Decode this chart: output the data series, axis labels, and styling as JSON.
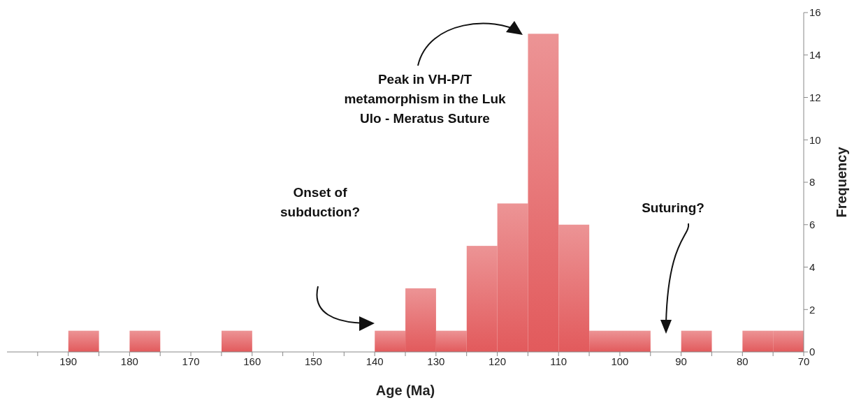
{
  "chart_data": {
    "type": "histogram",
    "xlabel": "Age (Ma)",
    "ylabel": "Frequency",
    "bins": [
      190,
      185,
      180,
      175,
      170,
      165,
      160,
      155,
      150,
      145,
      140,
      135,
      130,
      125,
      120,
      115,
      110,
      105,
      100,
      95,
      90,
      85,
      80,
      75,
      70
    ],
    "values": [
      1,
      0,
      1,
      0,
      0,
      1,
      0,
      0,
      0,
      0,
      1,
      3,
      1,
      5,
      7,
      15,
      6,
      1,
      1,
      0,
      1,
      0,
      1,
      1
    ],
    "color": "#e25a5c",
    "xlim": [
      200,
      70
    ],
    "xticks": [
      {
        "value": 195,
        "label": null
      },
      190,
      {
        "value": 185,
        "label": null
      },
      180,
      {
        "value": 175,
        "label": null
      },
      170,
      {
        "value": 165,
        "label": null
      },
      160,
      {
        "value": 155,
        "label": null
      },
      150,
      {
        "value": 145,
        "label": null
      },
      140,
      {
        "value": 135,
        "label": null
      },
      130,
      {
        "value": 125,
        "label": null
      },
      120,
      {
        "value": 115,
        "label": null
      },
      110,
      {
        "value": 105,
        "label": null
      },
      100,
      {
        "value": 95,
        "label": null
      },
      90,
      {
        "value": 85,
        "label": null
      },
      80,
      {
        "value": 75,
        "label": null
      },
      70
    ],
    "ylim": [
      0,
      16
    ],
    "yticks": [
      0,
      2,
      4,
      6,
      8,
      10,
      12,
      14,
      16
    ],
    "grid": false,
    "legend": false,
    "annotations": [
      "Peak in VH-P/T metamorphism in the Luk Ulo - Meratus Suture",
      "Onset of subduction?",
      "Suturing?"
    ]
  }
}
